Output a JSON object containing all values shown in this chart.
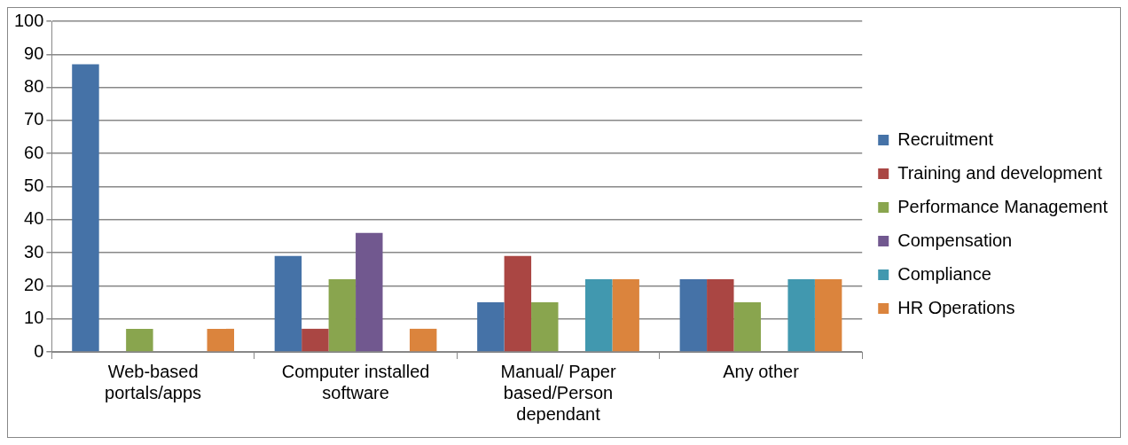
{
  "chart_data": {
    "type": "bar",
    "categories": [
      "Web-based portals/apps",
      "Computer installed software",
      "Manual/ Paper based/Person dependant",
      "Any other"
    ],
    "series": [
      {
        "name": "Recruitment",
        "color": "#4572a7",
        "values": [
          87,
          29,
          15,
          22
        ]
      },
      {
        "name": "Training and development",
        "color": "#aa4643",
        "values": [
          0,
          7,
          29,
          22
        ]
      },
      {
        "name": "Performance Management",
        "color": "#89a54e",
        "values": [
          7,
          22,
          15,
          15
        ]
      },
      {
        "name": "Compensation",
        "color": "#71588f",
        "values": [
          0,
          36,
          0,
          0
        ]
      },
      {
        "name": "Compliance",
        "color": "#4198af",
        "values": [
          0,
          0,
          22,
          22
        ]
      },
      {
        "name": "HR Operations",
        "color": "#db843d",
        "values": [
          7,
          7,
          22,
          22
        ]
      }
    ],
    "ylim": [
      0,
      100
    ],
    "yticks": [
      0,
      10,
      20,
      30,
      40,
      50,
      60,
      70,
      80,
      90,
      100
    ],
    "grid": "y",
    "legend": "right"
  }
}
